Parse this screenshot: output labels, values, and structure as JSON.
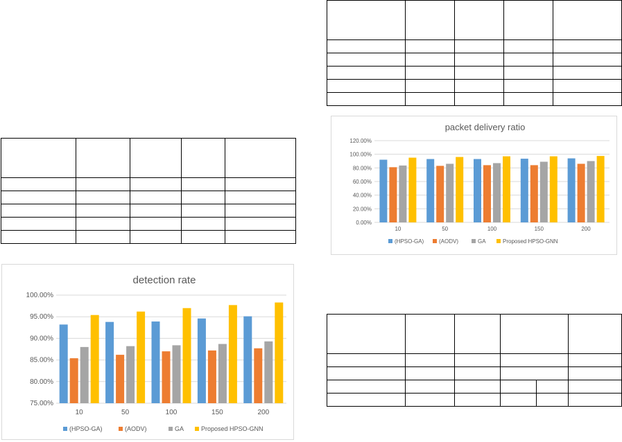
{
  "chart_data": [
    {
      "type": "bar",
      "title": "packet delivery ratio",
      "categories": [
        "10",
        "50",
        "100",
        "150",
        "200"
      ],
      "series": [
        {
          "name": "(HPSO-GA)",
          "color": "#5B9BD5",
          "values": [
            92,
            93,
            93,
            93.5,
            94
          ]
        },
        {
          "name": "(AODV)",
          "color": "#ED7D31",
          "values": [
            81,
            83,
            84,
            84,
            86
          ]
        },
        {
          "name": "GA",
          "color": "#A5A5A5",
          "values": [
            83.5,
            86,
            87,
            89,
            90
          ]
        },
        {
          "name": "Proposed HPSO-GNN",
          "color": "#FFC000",
          "values": [
            95,
            96,
            97,
            97,
            97.5
          ]
        }
      ],
      "ylim": [
        0,
        120
      ],
      "yticks": [
        "0.00%",
        "20.00%",
        "40.00%",
        "60.00%",
        "80.00%",
        "100.00%",
        "120.00%"
      ],
      "grid": true,
      "legend": "bottom"
    },
    {
      "type": "bar",
      "title": "detection rate",
      "categories": [
        "10",
        "50",
        "100",
        "150",
        "200"
      ],
      "series": [
        {
          "name": "(HPSO-GA)",
          "color": "#5B9BD5",
          "values": [
            93.2,
            93.8,
            93.9,
            94.6,
            95.1
          ]
        },
        {
          "name": "(AODV)",
          "color": "#ED7D31",
          "values": [
            85.4,
            86.2,
            87.0,
            87.2,
            87.7
          ]
        },
        {
          "name": "GA",
          "color": "#A5A5A5",
          "values": [
            88.0,
            88.2,
            88.4,
            88.7,
            89.3
          ]
        },
        {
          "name": "Proposed HPSO-GNN",
          "color": "#FFC000",
          "values": [
            95.4,
            96.2,
            97.0,
            97.7,
            98.3
          ]
        }
      ],
      "ylim": [
        75,
        100
      ],
      "yticks": [
        "75.00%",
        "80.00%",
        "85.00%",
        "90.00%",
        "95.00%",
        "100.00%"
      ],
      "grid": true,
      "legend": "bottom"
    }
  ]
}
